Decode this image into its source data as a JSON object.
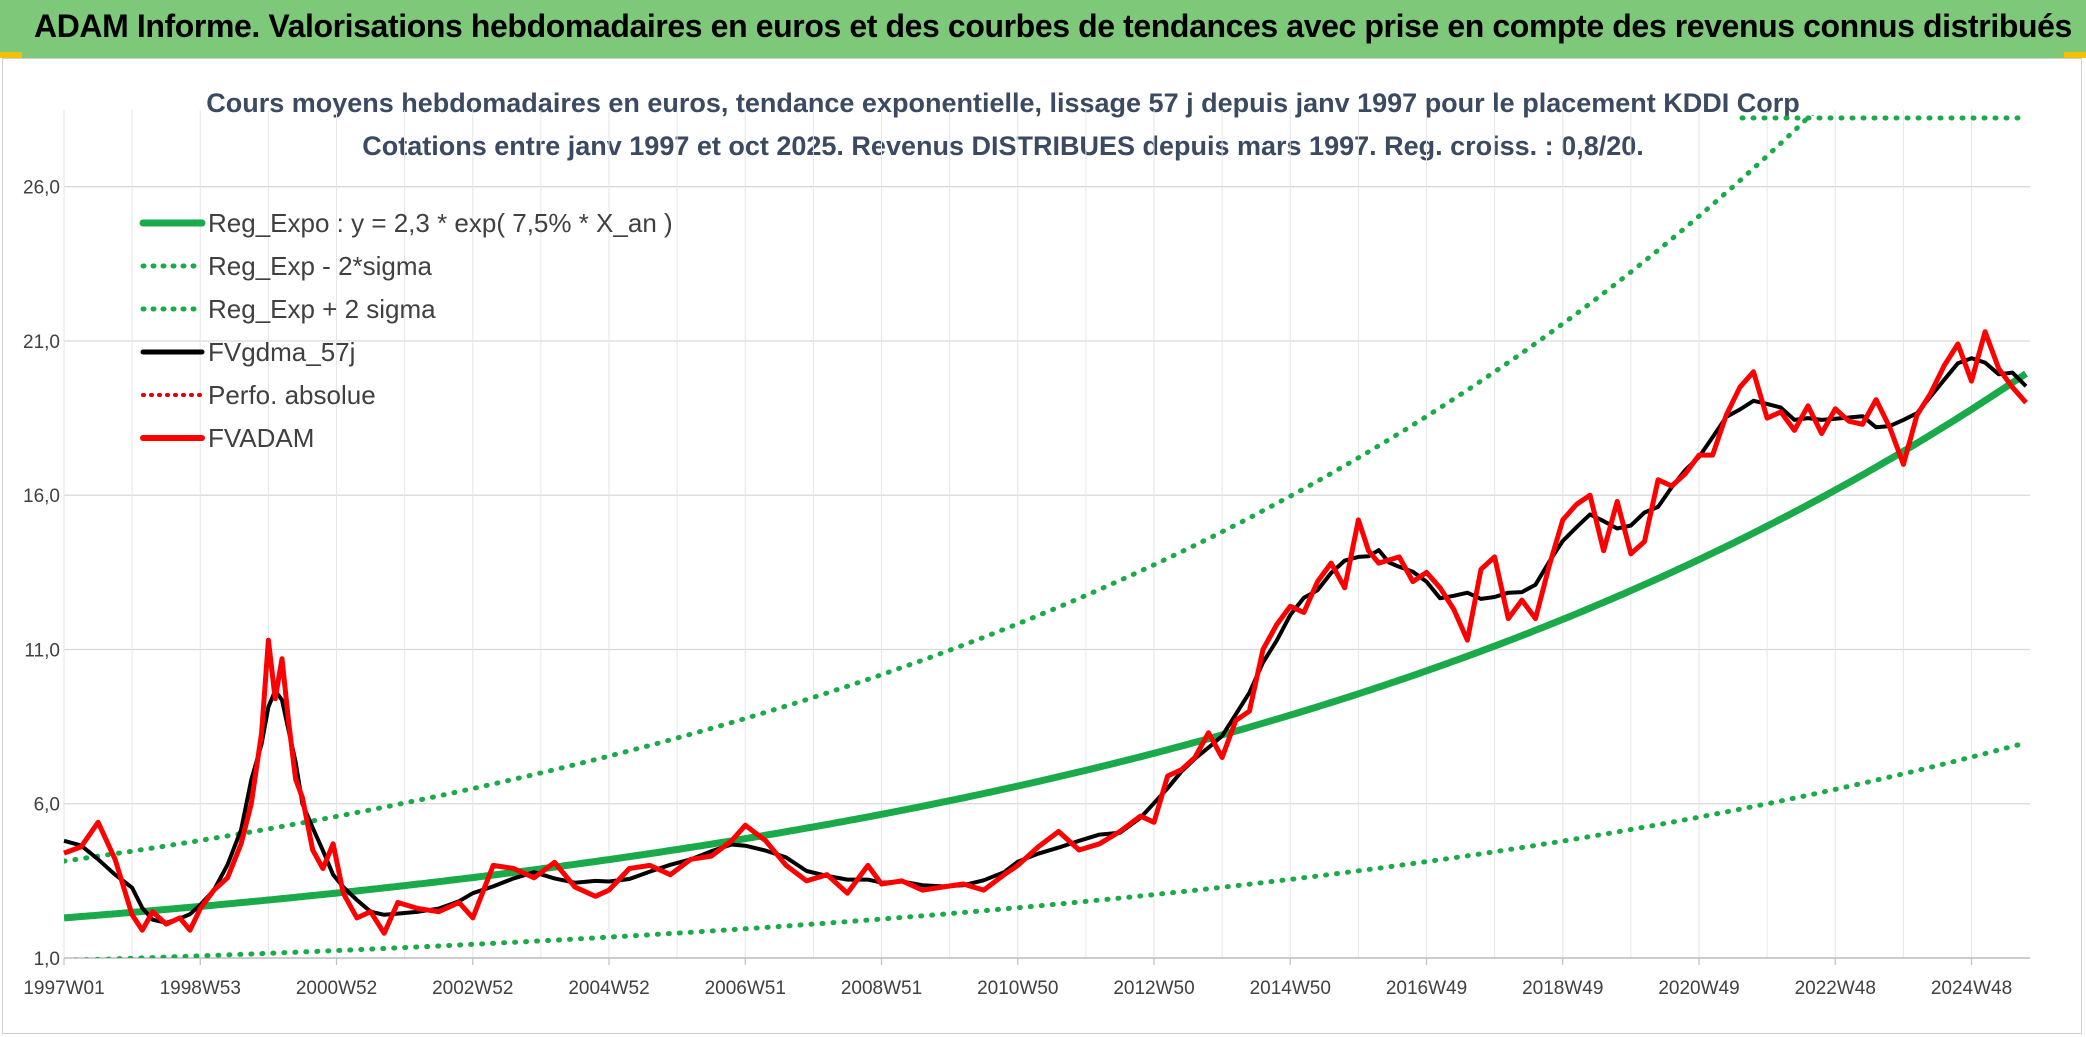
{
  "header": {
    "title": "ADAM Informe. Valorisations hebdomadaires en euros et des courbes de tendances avec prise en compte des revenus connus distribués"
  },
  "colors": {
    "banner": "#7ec87a",
    "reg_expo": "#1aaa4a",
    "band": "#1aaa4a",
    "gdma": "#000000",
    "perfo": "#e00000",
    "adam": "#ff0000",
    "grid": "#d9d9d9"
  },
  "chart_data": {
    "type": "line",
    "title_line1": "Cours moyens hebdomadaires en euros, tendance exponentielle, lissage 57 j depuis janv 1997 pour le placement KDDI Corp",
    "title_line2": "Cotations entre janv 1997 et oct 2025. Revenus DISTRIBUES depuis mars 1997. Reg. croiss. : 0,8/20.",
    "xlim": [
      1997.0,
      2025.8
    ],
    "ylim": [
      1.0,
      28.0
    ],
    "y_ticks": [
      "1,0",
      "6,0",
      "11,0",
      "16,0",
      "21,0",
      "26,0"
    ],
    "y_tick_values": [
      1,
      6,
      11,
      16,
      21,
      26
    ],
    "x_ticks": [
      "1997W01",
      "1998W53",
      "2000W52",
      "2002W52",
      "2004W52",
      "2006W51",
      "2008W51",
      "2010W50",
      "2012W50",
      "2014W50",
      "2016W49",
      "2018W49",
      "2020W49",
      "2022W48",
      "2024W48"
    ],
    "x_tick_values": [
      1997,
      1999,
      2001,
      2003,
      2005,
      2007,
      2009,
      2011,
      2013,
      2015,
      2017,
      2019,
      2021,
      2023,
      2025
    ],
    "legend": [
      {
        "label": "Reg_Expo : y = 2,3 * exp( 7,5% *  X_an )",
        "style": "solid-green-thick"
      },
      {
        "label": "Reg_Exp - 2*sigma",
        "style": "dotted-green"
      },
      {
        "label": "Reg_Exp + 2 sigma",
        "style": "dotted-green"
      },
      {
        "label": "FVgdma_57j",
        "style": "solid-black"
      },
      {
        "label": "Perfo. absolue",
        "style": "dotted-red"
      },
      {
        "label": "FVADAM",
        "style": "solid-red-thick"
      }
    ],
    "trend": {
      "a": 2.3,
      "rate": 0.075,
      "x0": 1997.0,
      "lower_factor": 0.4,
      "upper_factor": 1.8
    },
    "series": [
      {
        "name": "FVADAM",
        "x": [
          1997.0,
          1997.25,
          1997.5,
          1997.75,
          1998.0,
          1998.15,
          1998.3,
          1998.5,
          1998.7,
          1998.85,
          1999.0,
          1999.2,
          1999.4,
          1999.6,
          1999.75,
          1999.9,
          2000.0,
          2000.1,
          2000.2,
          2000.3,
          2000.4,
          2000.5,
          2000.65,
          2000.8,
          2000.95,
          2001.1,
          2001.3,
          2001.5,
          2001.7,
          2001.9,
          2002.2,
          2002.5,
          2002.8,
          2003.0,
          2003.3,
          2003.6,
          2003.9,
          2004.2,
          2004.5,
          2004.8,
          2005.0,
          2005.3,
          2005.6,
          2005.9,
          2006.2,
          2006.5,
          2006.8,
          2007.0,
          2007.3,
          2007.6,
          2007.9,
          2008.2,
          2008.5,
          2008.8,
          2009.0,
          2009.3,
          2009.6,
          2009.9,
          2010.2,
          2010.5,
          2010.8,
          2011.0,
          2011.3,
          2011.6,
          2011.9,
          2012.2,
          2012.5,
          2012.8,
          2013.0,
          2013.2,
          2013.4,
          2013.6,
          2013.8,
          2014.0,
          2014.2,
          2014.4,
          2014.6,
          2014.8,
          2015.0,
          2015.2,
          2015.4,
          2015.6,
          2015.8,
          2016.0,
          2016.15,
          2016.3,
          2016.45,
          2016.6,
          2016.8,
          2017.0,
          2017.2,
          2017.4,
          2017.6,
          2017.8,
          2018.0,
          2018.2,
          2018.4,
          2018.6,
          2018.8,
          2019.0,
          2019.2,
          2019.4,
          2019.6,
          2019.8,
          2020.0,
          2020.2,
          2020.4,
          2020.6,
          2020.8,
          2021.0,
          2021.2,
          2021.4,
          2021.6,
          2021.8,
          2022.0,
          2022.2,
          2022.4,
          2022.6,
          2022.8,
          2023.0,
          2023.2,
          2023.4,
          2023.6,
          2023.8,
          2024.0,
          2024.2,
          2024.4,
          2024.6,
          2024.8,
          2025.0,
          2025.2,
          2025.4,
          2025.6,
          2025.8
        ],
        "y": [
          4.4,
          4.6,
          5.4,
          4.2,
          2.4,
          1.9,
          2.5,
          2.1,
          2.3,
          1.9,
          2.6,
          3.2,
          3.6,
          4.7,
          6.0,
          8.3,
          11.3,
          9.4,
          10.7,
          8.6,
          6.8,
          6.2,
          4.5,
          3.9,
          4.7,
          3.1,
          2.3,
          2.5,
          1.8,
          2.8,
          2.6,
          2.5,
          2.8,
          2.3,
          4.0,
          3.9,
          3.6,
          4.1,
          3.3,
          3.0,
          3.2,
          3.9,
          4.0,
          3.7,
          4.2,
          4.3,
          4.8,
          5.3,
          4.8,
          4.0,
          3.5,
          3.7,
          3.1,
          4.0,
          3.4,
          3.5,
          3.2,
          3.3,
          3.4,
          3.2,
          3.7,
          4.0,
          4.6,
          5.1,
          4.5,
          4.7,
          5.1,
          5.6,
          5.4,
          6.9,
          7.1,
          7.5,
          8.3,
          7.5,
          8.7,
          9.0,
          11.0,
          11.8,
          12.4,
          12.2,
          13.2,
          13.8,
          13.0,
          15.2,
          14.2,
          13.8,
          13.9,
          14.0,
          13.2,
          13.5,
          13.0,
          12.3,
          11.3,
          13.6,
          14.0,
          12.0,
          12.6,
          12.0,
          13.7,
          15.2,
          15.7,
          16.0,
          14.2,
          15.8,
          14.1,
          14.5,
          16.5,
          16.3,
          16.7,
          17.3,
          17.3,
          18.6,
          19.5,
          20.0,
          18.5,
          18.7,
          18.1,
          18.9,
          18.0,
          18.8,
          18.4,
          18.3,
          19.1,
          18.2,
          17.0,
          18.6,
          19.3,
          20.2,
          20.9,
          19.7,
          21.3,
          20.1,
          19.5,
          19.0
        ]
      }
    ]
  }
}
